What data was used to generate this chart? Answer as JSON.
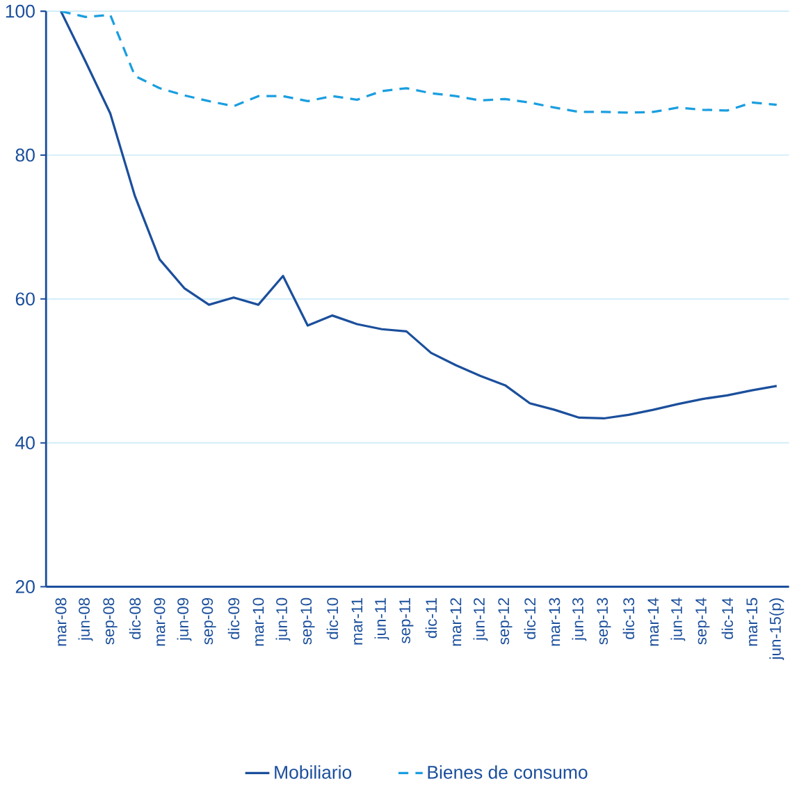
{
  "chart_data": {
    "type": "line",
    "categories": [
      "mar-08",
      "jun-08",
      "sep-08",
      "dic-08",
      "mar-09",
      "jun-09",
      "sep-09",
      "dic-09",
      "mar-10",
      "jun-10",
      "sep-10",
      "dic-10",
      "mar-11",
      "jun-11",
      "sep-11",
      "dic-11",
      "mar-12",
      "jun-12",
      "sep-12",
      "dic-12",
      "mar-13",
      "jun-13",
      "sep-13",
      "dic-13",
      "mar-14",
      "jun-14",
      "sep-14",
      "dic-14",
      "mar-15",
      "jun-15(p)"
    ],
    "series": [
      {
        "name": "Mobiliario",
        "color": "#1b4f9c",
        "line_style": "solid",
        "values": [
          100,
          93,
          85.8,
          74.3,
          65.5,
          61.5,
          59.2,
          60.2,
          59.2,
          63.2,
          56.3,
          57.7,
          56.5,
          55.8,
          55.5,
          52.5,
          50.8,
          49.3,
          48,
          45.5,
          44.6,
          43.5,
          43.4,
          43.9,
          44.6,
          45.4,
          46.1,
          46.6,
          47.3,
          47.9
        ]
      },
      {
        "name": "Bienes de consumo",
        "color": "#1a9ee0",
        "line_style": "dashed",
        "values": [
          100,
          99.2,
          99.5,
          91,
          89.3,
          88.3,
          87.5,
          86.8,
          88.2,
          88.2,
          87.5,
          88.2,
          87.7,
          88.9,
          89.3,
          88.6,
          88.2,
          87.6,
          87.8,
          87.3,
          86.6,
          86,
          86,
          85.9,
          86,
          86.6,
          86.3,
          86.2,
          87.3,
          87
        ]
      }
    ],
    "ylim": [
      20,
      100
    ],
    "yticks": [
      20,
      40,
      60,
      80,
      100
    ],
    "grid": "y",
    "legend": "bottom",
    "marker": "none"
  }
}
